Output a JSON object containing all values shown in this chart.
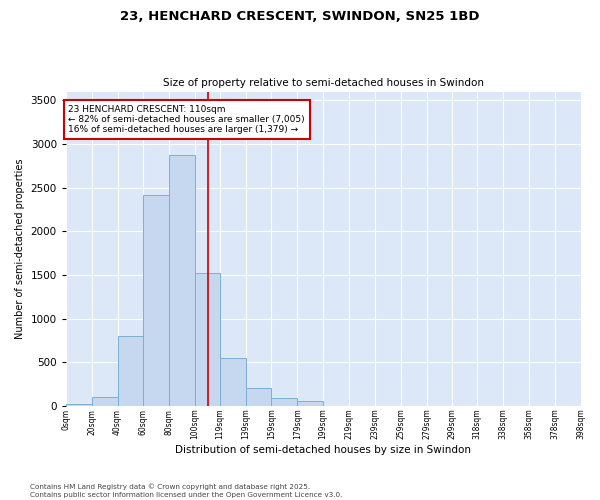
{
  "title_line1": "23, HENCHARD CRESCENT, SWINDON, SN25 1BD",
  "title_line2": "Size of property relative to semi-detached houses in Swindon",
  "xlabel": "Distribution of semi-detached houses by size in Swindon",
  "ylabel": "Number of semi-detached properties",
  "annotation_line1": "23 HENCHARD CRESCENT: 110sqm",
  "annotation_line2": "← 82% of semi-detached houses are smaller (7,005)",
  "annotation_line3": "16% of semi-detached houses are larger (1,379) →",
  "property_size": 110,
  "vertical_line_color": "#cc0000",
  "bar_color": "#c5d8f0",
  "bar_edge_color": "#7bafd4",
  "background_color": "#dce8f8",
  "bins": [
    0,
    20,
    40,
    60,
    80,
    100,
    119,
    139,
    159,
    179,
    199,
    219,
    239,
    259,
    279,
    299,
    318,
    338,
    358,
    378,
    398
  ],
  "bin_labels": [
    "0sqm",
    "20sqm",
    "40sqm",
    "60sqm",
    "80sqm",
    "100sqm",
    "119sqm",
    "139sqm",
    "159sqm",
    "179sqm",
    "199sqm",
    "219sqm",
    "239sqm",
    "259sqm",
    "279sqm",
    "299sqm",
    "318sqm",
    "338sqm",
    "358sqm",
    "378sqm",
    "398sqm"
  ],
  "counts": [
    20,
    100,
    800,
    2420,
    2870,
    1520,
    550,
    200,
    85,
    55,
    0,
    0,
    0,
    0,
    0,
    0,
    0,
    0,
    0,
    0
  ],
  "ylim": [
    0,
    3600
  ],
  "yticks": [
    0,
    500,
    1000,
    1500,
    2000,
    2500,
    3000,
    3500
  ],
  "footnote": "Contains HM Land Registry data © Crown copyright and database right 2025.\nContains public sector information licensed under the Open Government Licence v3.0."
}
